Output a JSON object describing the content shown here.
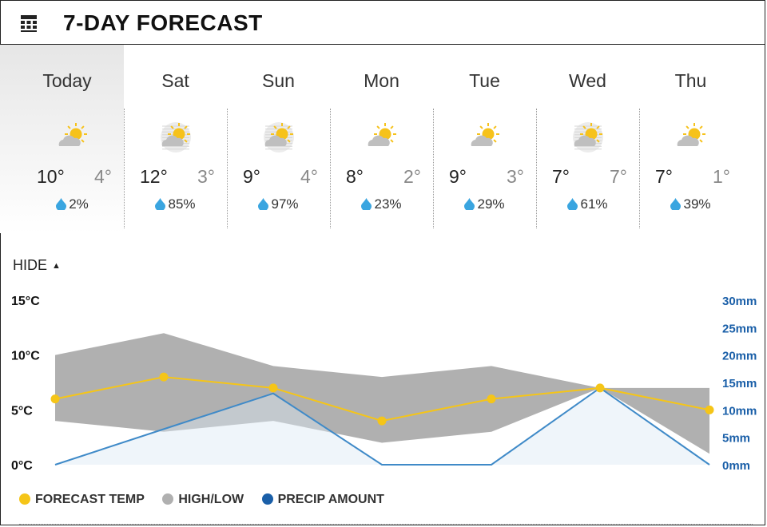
{
  "header": {
    "title": "7-DAY FORECAST",
    "icon": "calendar-icon"
  },
  "days": [
    {
      "name": "Today",
      "hi": "10°",
      "lo": "4°",
      "rain": "2%",
      "icon": "partly-sunny-icon"
    },
    {
      "name": "Sat",
      "hi": "12°",
      "lo": "3°",
      "rain": "85%",
      "icon": "hazy-sun-cloud-icon"
    },
    {
      "name": "Sun",
      "hi": "9°",
      "lo": "4°",
      "rain": "97%",
      "icon": "hazy-sun-cloud-icon"
    },
    {
      "name": "Mon",
      "hi": "8°",
      "lo": "2°",
      "rain": "23%",
      "icon": "partly-sunny-icon"
    },
    {
      "name": "Tue",
      "hi": "9°",
      "lo": "3°",
      "rain": "29%",
      "icon": "partly-sunny-icon"
    },
    {
      "name": "Wed",
      "hi": "7°",
      "lo": "7°",
      "rain": "61%",
      "icon": "hazy-sun-cloud-icon"
    },
    {
      "name": "Thu",
      "hi": "7°",
      "lo": "1°",
      "rain": "39%",
      "icon": "partly-sunny-icon"
    }
  ],
  "toggle": {
    "label": "HIDE"
  },
  "legend": {
    "forecast": "FORECAST TEMP",
    "highlow": "HIGH/LOW",
    "precip": "PRECIP AMOUNT"
  },
  "colors": {
    "forecast": "#f5c518",
    "highlow": "#b0b0b0",
    "precip": "#1a5fa8",
    "drop": "#3aa5e0",
    "precipLine": "#3f8ac8"
  },
  "chart_data": {
    "type": "line",
    "categories": [
      "Today",
      "Sat",
      "Sun",
      "Mon",
      "Tue",
      "Wed",
      "Thu"
    ],
    "series": [
      {
        "name": "FORECAST TEMP",
        "axis": "left",
        "values": [
          6,
          8,
          7,
          4,
          6,
          7,
          5
        ]
      },
      {
        "name": "HIGH/LOW",
        "axis": "left",
        "high": [
          10,
          12,
          9,
          8,
          9,
          7,
          7
        ],
        "low": [
          4,
          3,
          4,
          2,
          3,
          7,
          1
        ]
      },
      {
        "name": "PRECIP AMOUNT",
        "axis": "right",
        "values": [
          0,
          6.5,
          13,
          0,
          0,
          14,
          0
        ]
      }
    ],
    "yleft": {
      "ticks": [
        "15°C",
        "10°C",
        "5°C",
        "0°C"
      ],
      "lim": [
        0,
        15
      ]
    },
    "yright": {
      "ticks": [
        "30mm",
        "25mm",
        "20mm",
        "15mm",
        "10mm",
        "5mm",
        "0mm"
      ],
      "lim": [
        0,
        30
      ]
    }
  }
}
